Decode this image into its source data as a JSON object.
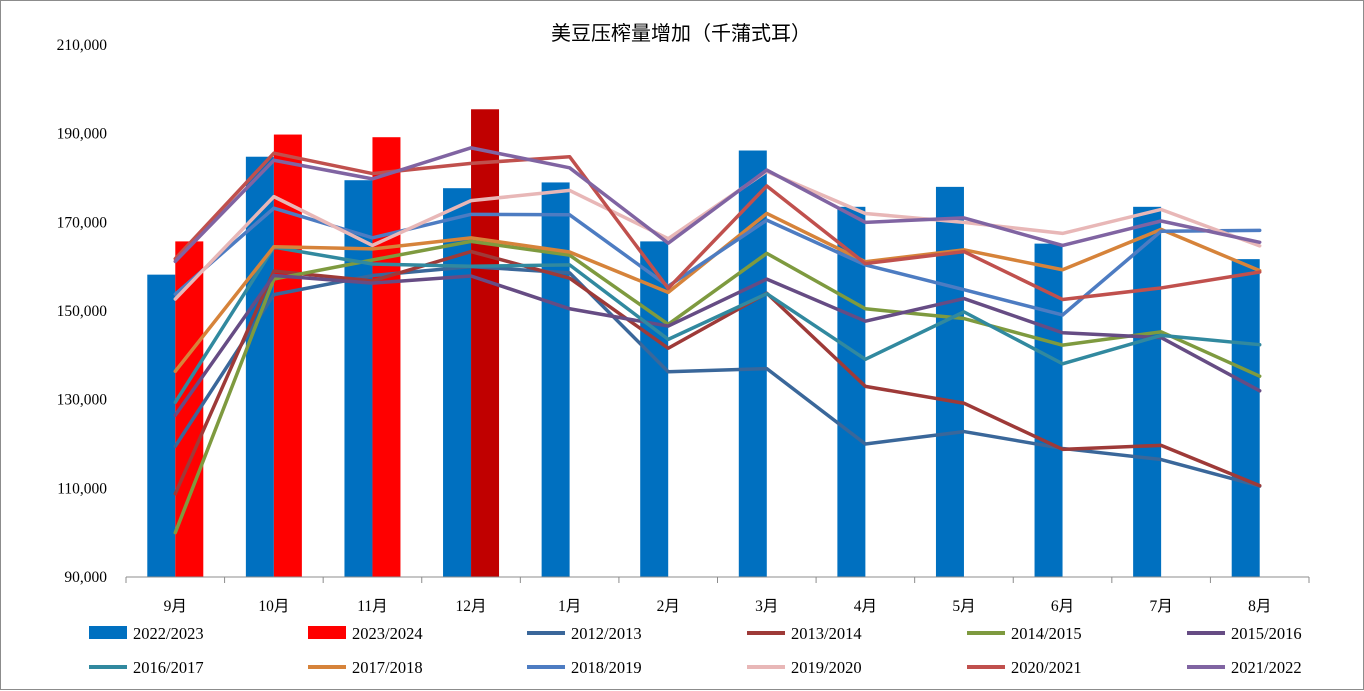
{
  "chart_data": {
    "type": "bar",
    "title": "美豆压榨量增加（千蒲式耳）",
    "xlabel": "",
    "ylabel": "",
    "categories": [
      "9月",
      "10月",
      "11月",
      "12月",
      "1月",
      "2月",
      "3月",
      "4月",
      "5月",
      "6月",
      "7月",
      "8月"
    ],
    "ylim": [
      90000,
      210000
    ],
    "yticks": [
      90000,
      110000,
      130000,
      150000,
      170000,
      190000,
      210000
    ],
    "ytick_labels": [
      "90,000",
      "110,000",
      "130,000",
      "150,000",
      "170,000",
      "190,000",
      "210,000"
    ],
    "grid": false,
    "legend": "bottom",
    "bar_series": [
      {
        "name": "2022/2023",
        "color": "#0070C0",
        "values": [
          158200,
          184800,
          179500,
          177700,
          179000,
          165700,
          186200,
          173500,
          178000,
          165200,
          173500,
          161700
        ]
      },
      {
        "name": "2023/2024",
        "color": "#FF0000",
        "last_color": "#C00000",
        "values": [
          165700,
          189800,
          189200,
          195500,
          null,
          null,
          null,
          null,
          null,
          null,
          null,
          null
        ]
      }
    ],
    "line_series": [
      {
        "name": "2012/2013",
        "color": "#3A679A",
        "values": [
          119500,
          153700,
          158000,
          160000,
          158600,
          136300,
          137000,
          120000,
          122800,
          119000,
          116500,
          110500
        ]
      },
      {
        "name": "2013/2014",
        "color": "#9E3A38",
        "values": [
          108800,
          159000,
          156800,
          163400,
          157400,
          141600,
          154000,
          133000,
          129200,
          118800,
          119700,
          110600
        ]
      },
      {
        "name": "2014/2015",
        "color": "#7E9A3F",
        "values": [
          100000,
          157200,
          161500,
          165700,
          162600,
          147000,
          163000,
          150500,
          148300,
          142300,
          145300,
          135300
        ]
      },
      {
        "name": "2015/2016",
        "color": "#664C84",
        "values": [
          126500,
          158000,
          156300,
          157900,
          150500,
          146600,
          157200,
          147700,
          152800,
          145100,
          144000,
          132000
        ]
      },
      {
        "name": "2016/2017",
        "color": "#31899F",
        "values": [
          129400,
          164400,
          160600,
          160100,
          160400,
          143600,
          153900,
          139100,
          149800,
          138100,
          144500,
          142400
        ]
      },
      {
        "name": "2017/2018",
        "color": "#D6833A",
        "values": [
          136400,
          164500,
          164000,
          166500,
          163300,
          154200,
          172000,
          161100,
          163800,
          159300,
          168400,
          159100
        ]
      },
      {
        "name": "2018/2019",
        "color": "#4D7CC2",
        "values": [
          153800,
          173200,
          166500,
          171800,
          171700,
          155600,
          170500,
          160400,
          154800,
          149100,
          168000,
          168200
        ]
      },
      {
        "name": "2019/2020",
        "color": "#E8B7B7",
        "values": [
          152700,
          175800,
          164800,
          174900,
          177200,
          166300,
          181500,
          172000,
          170000,
          167500,
          172900,
          164700
        ]
      },
      {
        "name": "2020/2021",
        "color": "#C0504D",
        "values": [
          161800,
          185600,
          181000,
          183300,
          184800,
          155100,
          178200,
          160700,
          163400,
          152600,
          155200,
          158800
        ]
      },
      {
        "name": "2021/2022",
        "color": "#8064A2",
        "values": [
          161200,
          184000,
          179800,
          186800,
          182300,
          165300,
          181800,
          170000,
          171000,
          164800,
          170300,
          165500
        ]
      }
    ]
  }
}
